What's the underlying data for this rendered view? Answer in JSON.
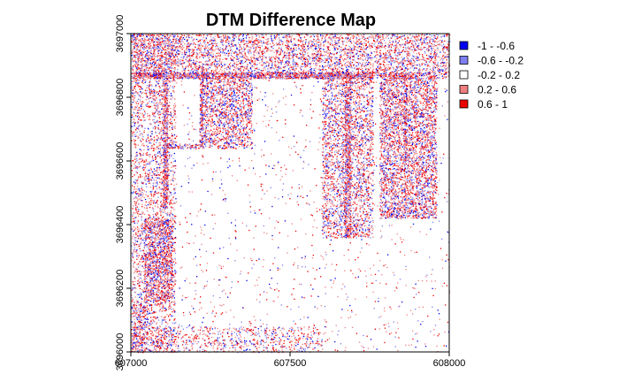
{
  "chart_data": {
    "type": "heatmap",
    "title": "DTM Difference Map",
    "xlabel": "",
    "ylabel": "",
    "xlim": [
      607000,
      608000
    ],
    "ylim": [
      3696000,
      3697000
    ],
    "x_ticks": [
      607000,
      607500,
      608000
    ],
    "x_tick_labels": [
      "607000",
      "607500",
      "608000"
    ],
    "y_ticks": [
      3696000,
      3696200,
      3696400,
      3696600,
      3696800,
      3697000
    ],
    "y_tick_labels": [
      "3696000",
      "3696200",
      "3696400",
      "3696600",
      "3696800",
      "3697000"
    ],
    "grid": false,
    "legend_position": "right",
    "classes": [
      {
        "label": "-1 - -0.6",
        "range": [
          -1,
          -0.6
        ],
        "color": "#0000ee"
      },
      {
        "label": "-0.6 - -0.2",
        "range": [
          -0.6,
          -0.2
        ],
        "color": "#7f7ff2"
      },
      {
        "label": "-0.2 - 0.2",
        "range": [
          -0.2,
          0.2
        ],
        "color": "#ffffff"
      },
      {
        "label": "0.2 - 0.6",
        "range": [
          0.2,
          0.6
        ],
        "color": "#f07f7f"
      },
      {
        "label": "0.6 - 1",
        "range": [
          0.6,
          1
        ],
        "color": "#ee0000"
      }
    ],
    "dense_regions": [
      {
        "x": [
          607000,
          607140
        ],
        "y": [
          3696000,
          3697000
        ],
        "density": 0.15
      },
      {
        "x": [
          607000,
          608000
        ],
        "y": [
          3696860,
          3697000
        ],
        "density": 0.22
      },
      {
        "x": [
          607220,
          607380
        ],
        "y": [
          3696640,
          3696860
        ],
        "density": 0.28
      },
      {
        "x": [
          607040,
          607130
        ],
        "y": [
          3696160,
          3696420
        ],
        "density": 0.35
      },
      {
        "x": [
          607600,
          607760
        ],
        "y": [
          3696360,
          3696880
        ],
        "density": 0.22
      },
      {
        "x": [
          607780,
          607960
        ],
        "y": [
          3696420,
          3696880
        ],
        "density": 0.32
      },
      {
        "x": [
          607000,
          607050
        ],
        "y": [
          3696000,
          3696160
        ],
        "density": 0.18
      },
      {
        "x": [
          607000,
          607600
        ],
        "y": [
          3696000,
          3696080
        ],
        "density": 0.12
      }
    ],
    "linear_features": [
      {
        "x": [
          607000,
          607760
        ],
        "y": [
          3696860,
          3696880
        ],
        "density": 0.6
      },
      {
        "x": [
          607100,
          607115
        ],
        "y": [
          3696450,
          3696860
        ],
        "density": 0.55
      },
      {
        "x": [
          607215,
          607225
        ],
        "y": [
          3696640,
          3696860
        ],
        "density": 0.5
      },
      {
        "x": [
          607100,
          607220
        ],
        "y": [
          3696640,
          3696655
        ],
        "density": 0.5
      },
      {
        "x": [
          607855,
          607865
        ],
        "y": [
          3696600,
          3696880
        ],
        "density": 0.4
      },
      {
        "x": [
          607670,
          607690
        ],
        "y": [
          3696360,
          3696880
        ],
        "density": 0.45
      }
    ]
  }
}
